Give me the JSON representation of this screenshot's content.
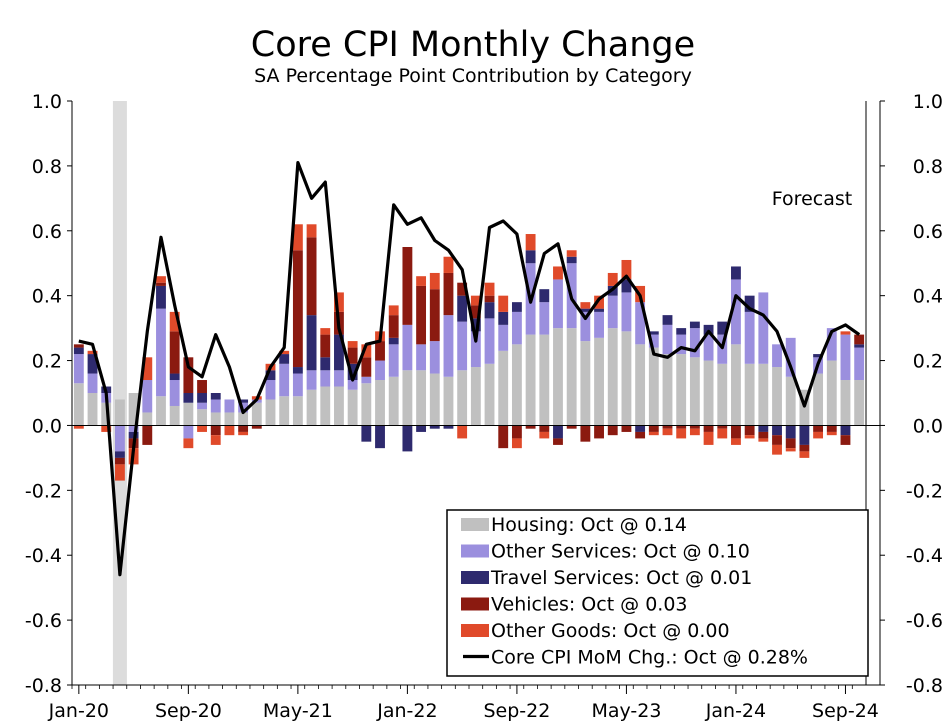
{
  "chart_data": {
    "type": "bar",
    "title": "Core CPI Monthly Change",
    "subtitle": "SA Percentage Point Contribution by Category",
    "annotation": "Forecast",
    "ylim": [
      -0.8,
      1.0
    ],
    "yticks": [
      "1.0",
      "0.8",
      "0.6",
      "0.4",
      "0.2",
      "0.0",
      "-0.2",
      "-0.4",
      "-0.6",
      "-0.8"
    ],
    "ytick_values": [
      1.0,
      0.8,
      0.6,
      0.4,
      0.2,
      0.0,
      -0.2,
      -0.4,
      -0.6,
      -0.8
    ],
    "x_tick_labels": [
      "Jan-20",
      "Sep-20",
      "May-21",
      "Jan-22",
      "Sep-22",
      "May-23",
      "Jan-24",
      "Sep-24"
    ],
    "x_tick_indices": [
      0,
      8,
      16,
      24,
      32,
      40,
      48,
      56
    ],
    "shaded_region_month_index": 3,
    "forecast_start_index": 57,
    "months": 58,
    "legend_position": "bottom-right",
    "colors": {
      "Housing": "#c0c0c0",
      "Other Services": "#9b8fde",
      "Travel Services": "#2e2a6e",
      "Vehicles": "#8b1a10",
      "Other Goods": "#e04a2a",
      "Core CPI MoM Chg.": "#000000",
      "shade": "#dcdcdc"
    },
    "series": [
      {
        "name": "Housing",
        "values": [
          0.13,
          0.1,
          0.07,
          0.08,
          0.1,
          0.04,
          0.09,
          0.06,
          0.07,
          0.05,
          0.04,
          0.04,
          0.04,
          0.07,
          0.08,
          0.09,
          0.09,
          0.11,
          0.12,
          0.12,
          0.11,
          0.13,
          0.14,
          0.15,
          0.17,
          0.17,
          0.16,
          0.15,
          0.17,
          0.18,
          0.19,
          0.23,
          0.25,
          0.28,
          0.28,
          0.3,
          0.3,
          0.26,
          0.27,
          0.3,
          0.29,
          0.25,
          0.24,
          0.22,
          0.22,
          0.21,
          0.2,
          0.19,
          0.25,
          0.19,
          0.19,
          0.18,
          0.15,
          0.11,
          0.16,
          0.2,
          0.14,
          0.14
        ]
      },
      {
        "name": "Other Services",
        "values": [
          0.09,
          0.06,
          0.03,
          -0.08,
          -0.02,
          0.1,
          0.27,
          0.08,
          -0.04,
          0.02,
          0.04,
          0.04,
          0.03,
          0.01,
          0.06,
          0.1,
          0.07,
          0.06,
          0.05,
          0.05,
          0.03,
          0.02,
          0.06,
          0.1,
          0.14,
          0.08,
          0.1,
          0.19,
          0.15,
          0.11,
          0.14,
          0.08,
          0.1,
          0.22,
          0.1,
          0.15,
          0.2,
          0.09,
          0.08,
          0.1,
          0.12,
          0.13,
          0.04,
          0.09,
          0.06,
          0.09,
          0.08,
          0.09,
          0.2,
          0.16,
          0.22,
          0.07,
          0.12,
          0.0,
          0.05,
          0.1,
          0.14,
          0.1
        ]
      },
      {
        "name": "Travel Services",
        "values": [
          0.02,
          0.06,
          0.02,
          -0.02,
          -0.02,
          0.0,
          0.07,
          0.02,
          0.03,
          0.03,
          0.02,
          0.0,
          0.01,
          0.0,
          0.03,
          0.03,
          0.02,
          0.17,
          0.04,
          0.11,
          0.05,
          -0.05,
          -0.07,
          0.02,
          -0.08,
          -0.02,
          -0.01,
          -0.01,
          0.08,
          0.04,
          0.05,
          0.04,
          0.03,
          0.04,
          0.04,
          -0.04,
          0.02,
          0.01,
          0.01,
          0.03,
          0.04,
          -0.02,
          0.01,
          0.03,
          0.02,
          0.02,
          0.03,
          0.04,
          0.04,
          0.05,
          -0.02,
          -0.03,
          -0.04,
          -0.06,
          0.01,
          0.0,
          -0.03,
          0.01
        ]
      },
      {
        "name": "Vehicles",
        "values": [
          0.01,
          0.0,
          0.0,
          -0.02,
          -0.03,
          -0.06,
          0.01,
          0.13,
          0.11,
          0.04,
          -0.03,
          0.0,
          -0.02,
          -0.01,
          0.0,
          0.0,
          0.36,
          0.24,
          0.07,
          0.07,
          0.05,
          0.06,
          0.06,
          0.07,
          0.24,
          0.18,
          0.16,
          0.13,
          0.04,
          0.04,
          0.02,
          -0.07,
          -0.04,
          -0.01,
          -0.02,
          -0.02,
          -0.01,
          -0.05,
          -0.04,
          -0.03,
          -0.02,
          -0.02,
          -0.02,
          -0.01,
          -0.01,
          -0.01,
          -0.02,
          -0.01,
          -0.04,
          -0.03,
          -0.02,
          -0.03,
          -0.03,
          -0.02,
          -0.02,
          -0.02,
          -0.03,
          0.03
        ]
      },
      {
        "name": "Other Goods",
        "values": [
          -0.01,
          0.01,
          -0.02,
          -0.05,
          -0.05,
          0.07,
          0.02,
          0.06,
          -0.03,
          -0.02,
          -0.03,
          -0.03,
          -0.01,
          0.01,
          0.02,
          0.01,
          0.08,
          0.04,
          0.02,
          0.06,
          0.02,
          0.04,
          0.03,
          0.03,
          0.0,
          0.03,
          0.05,
          0.05,
          -0.04,
          0.03,
          0.04,
          0.05,
          -0.03,
          0.05,
          -0.02,
          0.04,
          0.02,
          0.02,
          0.04,
          0.04,
          0.06,
          0.05,
          -0.01,
          -0.02,
          -0.03,
          -0.02,
          -0.04,
          -0.03,
          -0.02,
          -0.01,
          -0.01,
          -0.03,
          -0.01,
          -0.02,
          -0.02,
          -0.01,
          0.01,
          0.0
        ]
      },
      {
        "name": "Core CPI MoM Chg.",
        "values": [
          0.26,
          0.25,
          0.1,
          -0.46,
          -0.07,
          0.29,
          0.58,
          0.37,
          0.18,
          0.15,
          0.28,
          0.18,
          0.04,
          0.08,
          0.18,
          0.24,
          0.81,
          0.7,
          0.75,
          0.3,
          0.14,
          0.25,
          0.26,
          0.68,
          0.62,
          0.64,
          0.57,
          0.54,
          0.48,
          0.26,
          0.61,
          0.63,
          0.59,
          0.38,
          0.53,
          0.56,
          0.39,
          0.33,
          0.39,
          0.42,
          0.46,
          0.4,
          0.22,
          0.21,
          0.24,
          0.23,
          0.29,
          0.24,
          0.4,
          0.36,
          0.34,
          0.29,
          0.18,
          0.06,
          0.19,
          0.29,
          0.31,
          0.28
        ]
      }
    ],
    "legend": [
      {
        "label": "Housing: Oct @ 0.14",
        "color": "#c0c0c0",
        "kind": "box"
      },
      {
        "label": "Other Services: Oct @ 0.10",
        "color": "#9b8fde",
        "kind": "box"
      },
      {
        "label": "Travel Services: Oct @ 0.01",
        "color": "#2e2a6e",
        "kind": "box"
      },
      {
        "label": "Vehicles: Oct @ 0.03",
        "color": "#8b1a10",
        "kind": "box"
      },
      {
        "label": "Other Goods: Oct @ 0.00",
        "color": "#e04a2a",
        "kind": "box"
      },
      {
        "label": "Core CPI MoM Chg.: Oct @ 0.28%",
        "color": "#000000",
        "kind": "line"
      }
    ]
  }
}
